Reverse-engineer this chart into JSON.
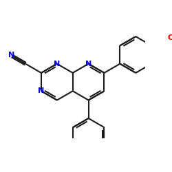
{
  "bg": "#ffffff",
  "bc": "#1a1a1a",
  "nc": "#0000ee",
  "oc": "#ee0000",
  "lw": 1.5,
  "fs_n": 8.0,
  "fs_o": 8.0,
  "bl": 0.18,
  "figsize": [
    2.5,
    2.5
  ],
  "dpi": 100,
  "xlim": [
    -0.72,
    0.72
  ],
  "ylim": [
    -0.42,
    0.62
  ]
}
